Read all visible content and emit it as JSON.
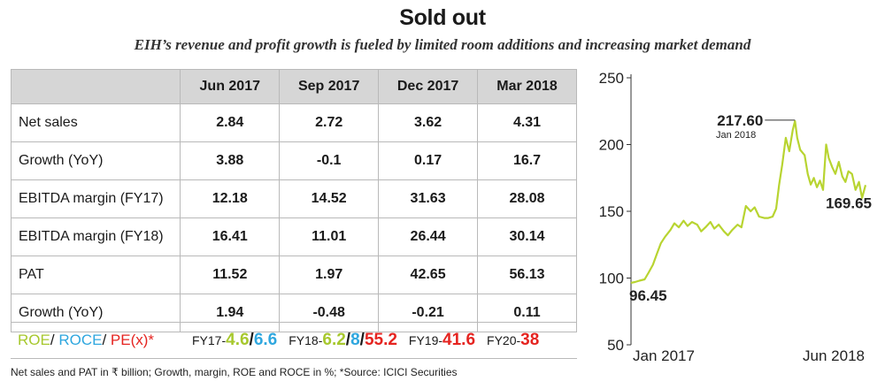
{
  "title": "Sold out",
  "subtitle": "EIH’s revenue and profit growth is fueled by limited room additions and increasing market demand",
  "table": {
    "columns": [
      "Jun 2017",
      "Sep 2017",
      "Dec 2017",
      "Mar 2018"
    ],
    "rows": [
      {
        "label": "Net sales",
        "values": [
          "2.84",
          "2.72",
          "3.62",
          "4.31"
        ]
      },
      {
        "label": "Growth (YoY)",
        "values": [
          "3.88",
          "-0.1",
          "0.17",
          "16.7"
        ]
      },
      {
        "label": "EBITDA margin (FY17)",
        "values": [
          "12.18",
          "14.52",
          "31.63",
          "28.08"
        ]
      },
      {
        "label": "EBITDA margin (FY18)",
        "values": [
          "16.41",
          "11.01",
          "26.44",
          "30.14"
        ]
      },
      {
        "label": "PAT",
        "values": [
          "11.52",
          "1.97",
          "42.65",
          "56.13"
        ]
      },
      {
        "label": "Growth (YoY)",
        "values": [
          "1.94",
          "-0.48",
          "-0.21",
          "0.11"
        ]
      }
    ]
  },
  "roe_row": {
    "legend": {
      "roe": "ROE",
      "roce": "ROCE",
      "pe": "PE(x)*",
      "sep": "/"
    },
    "fy17": {
      "label": "FY17-",
      "roe": "4.6",
      "sep": "/",
      "roce": "6.6"
    },
    "fy18": {
      "label": "FY18-",
      "roe": "6.2",
      "sep1": "/",
      "roce": "8",
      "sep2": "/",
      "pe": "55.2"
    },
    "fy19": {
      "label": "FY19-",
      "pe": "41.6"
    },
    "fy20": {
      "label": "FY20-",
      "pe": "38"
    }
  },
  "colors": {
    "roe": "#a7c82e",
    "roce": "#2fa7df",
    "pe": "#e52420",
    "line": "#b8d431"
  },
  "footnote": "Net sales and PAT in ₹ billion; Growth, margin, ROE and ROCE in %; *Source: ICICI Securities",
  "chart_data": {
    "type": "line",
    "title": "",
    "xlabel": "",
    "ylabel": "",
    "ylim": [
      50,
      250
    ],
    "y_ticks": [
      "250",
      "200",
      "150",
      "100",
      "50"
    ],
    "x_tick_labels": [
      "Jan 2017",
      "Jun 2018"
    ],
    "xlim": [
      "2017-01-01",
      "2018-06-30"
    ],
    "series": [
      {
        "values": [
          [
            "2017-01-01",
            96.45
          ],
          [
            "2017-01-10",
            97
          ],
          [
            "2017-01-20",
            98
          ],
          [
            "2017-02-01",
            99
          ],
          [
            "2017-02-10",
            104
          ],
          [
            "2017-02-20",
            110
          ],
          [
            "2017-03-01",
            118
          ],
          [
            "2017-03-10",
            126
          ],
          [
            "2017-03-20",
            131
          ],
          [
            "2017-04-01",
            136
          ],
          [
            "2017-04-10",
            141
          ],
          [
            "2017-04-20",
            138
          ],
          [
            "2017-05-01",
            143
          ],
          [
            "2017-05-10",
            139
          ],
          [
            "2017-05-20",
            142
          ],
          [
            "2017-06-01",
            140
          ],
          [
            "2017-06-10",
            135
          ],
          [
            "2017-06-20",
            138
          ],
          [
            "2017-07-01",
            142
          ],
          [
            "2017-07-10",
            137
          ],
          [
            "2017-07-20",
            140
          ],
          [
            "2017-08-01",
            135
          ],
          [
            "2017-08-10",
            132
          ],
          [
            "2017-08-20",
            136
          ],
          [
            "2017-09-01",
            140
          ],
          [
            "2017-09-10",
            138
          ],
          [
            "2017-09-20",
            154
          ],
          [
            "2017-10-01",
            150
          ],
          [
            "2017-10-10",
            153
          ],
          [
            "2017-10-20",
            146
          ],
          [
            "2017-11-01",
            145
          ],
          [
            "2017-11-10",
            145
          ],
          [
            "2017-11-20",
            146
          ],
          [
            "2017-11-28",
            152
          ],
          [
            "2017-12-05",
            170
          ],
          [
            "2017-12-12",
            185
          ],
          [
            "2017-12-20",
            205
          ],
          [
            "2017-12-28",
            195
          ],
          [
            "2018-01-05",
            211
          ],
          [
            "2018-01-10",
            217.6
          ],
          [
            "2018-01-15",
            205
          ],
          [
            "2018-01-22",
            196
          ],
          [
            "2018-02-01",
            192
          ],
          [
            "2018-02-08",
            178
          ],
          [
            "2018-02-15",
            170
          ],
          [
            "2018-02-22",
            175
          ],
          [
            "2018-03-01",
            168
          ],
          [
            "2018-03-08",
            173
          ],
          [
            "2018-03-15",
            166
          ],
          [
            "2018-03-22",
            200
          ],
          [
            "2018-03-28",
            190
          ],
          [
            "2018-04-05",
            183
          ],
          [
            "2018-04-12",
            178
          ],
          [
            "2018-04-20",
            187
          ],
          [
            "2018-04-28",
            176
          ],
          [
            "2018-05-05",
            172
          ],
          [
            "2018-05-12",
            180
          ],
          [
            "2018-05-20",
            178
          ],
          [
            "2018-05-28",
            166
          ],
          [
            "2018-06-05",
            172
          ],
          [
            "2018-06-12",
            160
          ],
          [
            "2018-06-20",
            169.65
          ]
        ]
      }
    ],
    "annotations": [
      {
        "value": "217.60",
        "sublabel": "Jan 2018",
        "at": [
          "2018-01-10",
          217.6
        ]
      },
      {
        "value": "96.45",
        "at": [
          "2017-01-01",
          96.45
        ]
      },
      {
        "value": "169.65",
        "at": [
          "2018-06-20",
          169.65
        ]
      }
    ]
  }
}
